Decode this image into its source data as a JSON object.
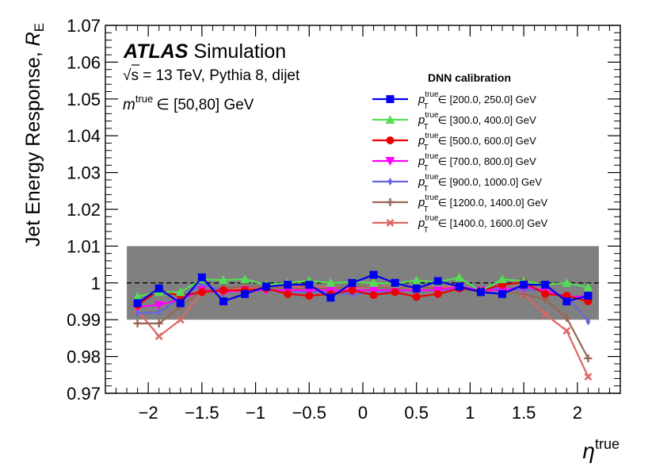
{
  "chart_data": {
    "type": "line",
    "xlabel_symbol": "η",
    "xlabel_sup": "true",
    "ylabel_main": "Jet Energy Response, ",
    "ylabel_symbol": "R",
    "ylabel_sub": "E",
    "xlim": [
      -2.4,
      2.4
    ],
    "ylim": [
      0.97,
      1.07
    ],
    "xticks": [
      -2,
      -1.5,
      -1,
      -0.5,
      0,
      0.5,
      1,
      1.5,
      2
    ],
    "xtick_labels": [
      "−2",
      "−1.5",
      "−1",
      "−0.5",
      "0",
      "0.5",
      "1",
      "1.5",
      "2"
    ],
    "yticks": [
      0.97,
      0.98,
      0.99,
      1.0,
      1.01,
      1.02,
      1.03,
      1.04,
      1.05,
      1.06,
      1.07
    ],
    "ytick_labels": [
      "0.97",
      "0.98",
      "0.99",
      "1",
      "1.01",
      "1.02",
      "1.03",
      "1.04",
      "1.05",
      "1.06",
      "1.07"
    ],
    "band": {
      "y_low": 0.99,
      "y_high": 1.01,
      "x_low": -2.2,
      "x_high": 2.2,
      "color": "#808080"
    },
    "reference_line": {
      "y": 1.0,
      "style": "dashed"
    },
    "x": [
      -2.1,
      -1.9,
      -1.7,
      -1.5,
      -1.3,
      -1.1,
      -0.9,
      -0.7,
      -0.5,
      -0.3,
      -0.1,
      0.1,
      0.3,
      0.5,
      0.7,
      0.9,
      1.1,
      1.3,
      1.5,
      1.7,
      1.9,
      2.1
    ],
    "series": [
      {
        "name": "[200.0, 250.0] GeV",
        "color": "#0000ee",
        "marker": "square",
        "values": [
          0.9945,
          0.9985,
          0.9945,
          1.0015,
          0.995,
          0.997,
          0.999,
          0.9995,
          0.9995,
          0.996,
          1.0,
          1.0022,
          1.0,
          0.9985,
          1.0005,
          0.999,
          0.9975,
          0.997,
          0.9995,
          0.9995,
          0.995,
          0.9965
        ]
      },
      {
        "name": "[300.0, 400.0] GeV",
        "color": "#55dd55",
        "marker": "triangle-up",
        "values": [
          0.9963,
          0.9975,
          0.9975,
          1.001,
          1.0008,
          1.001,
          0.9995,
          1.0,
          1.0006,
          1.0,
          1.0002,
          1.0,
          0.9998,
          1.0007,
          1.0002,
          1.0015,
          0.9978,
          1.001,
          1.0005,
          0.9995,
          1.0,
          0.9988
        ]
      },
      {
        "name": "[500.0, 600.0] GeV",
        "color": "#ee0000",
        "marker": "circle",
        "values": [
          0.994,
          0.998,
          0.9965,
          0.9975,
          0.998,
          0.998,
          0.9985,
          0.997,
          0.9965,
          0.997,
          0.998,
          0.9967,
          0.9975,
          0.9962,
          0.997,
          0.9985,
          0.9978,
          0.9995,
          1.0002,
          0.997,
          0.9965,
          0.995
        ]
      },
      {
        "name": "[700.0, 800.0] GeV",
        "color": "#ff00ff",
        "marker": "triangle-down",
        "values": [
          0.9935,
          0.994,
          0.9955,
          0.998,
          0.9975,
          0.998,
          0.998,
          0.998,
          0.998,
          0.998,
          0.998,
          0.998,
          0.998,
          0.998,
          0.998,
          0.999,
          0.998,
          0.998,
          0.999,
          0.998,
          0.996,
          0.9965
        ]
      },
      {
        "name": "[900.0, 1000.0] GeV",
        "color": "#6666dd",
        "marker": "diamond",
        "values": [
          0.9918,
          0.992,
          0.996,
          0.9995,
          0.998,
          0.998,
          0.9982,
          0.9975,
          0.9975,
          0.9975,
          0.9968,
          0.9975,
          0.9978,
          0.998,
          0.998,
          0.9985,
          0.9982,
          0.9985,
          0.998,
          0.998,
          0.9965,
          0.9895
        ]
      },
      {
        "name": "[1200.0, 1400.0] GeV",
        "color": "#996655",
        "marker": "plus",
        "values": [
          0.989,
          0.989,
          0.9935,
          0.998,
          0.9985,
          0.999,
          0.999,
          0.9985,
          0.9985,
          0.9985,
          0.999,
          0.999,
          0.9985,
          0.999,
          0.9985,
          0.9985,
          0.998,
          0.998,
          0.997,
          0.9955,
          0.9905,
          0.9795
        ]
      },
      {
        "name": "[1400.0, 1600.0] GeV",
        "color": "#dd6666",
        "marker": "x",
        "values": [
          0.9925,
          0.9855,
          0.99,
          0.9975,
          0.998,
          0.9985,
          0.999,
          0.999,
          0.999,
          0.999,
          0.9985,
          0.999,
          0.999,
          0.9985,
          0.999,
          0.999,
          0.998,
          0.998,
          0.997,
          0.9915,
          0.987,
          0.9745
        ]
      }
    ]
  },
  "annotations": {
    "atlas_label": "ATLAS",
    "simulation_label": "Simulation",
    "energy_prefix": "√",
    "energy_text": "s = 13 TeV, Pythia 8, dijet",
    "mass_symbol": "m",
    "mass_sup": "true",
    "mass_range": "∈ [50,80] GeV",
    "legend_title": "DNN calibration",
    "legend_symbol": "p",
    "legend_sup": "true",
    "legend_sub": "T",
    "legend_in": "∈"
  }
}
